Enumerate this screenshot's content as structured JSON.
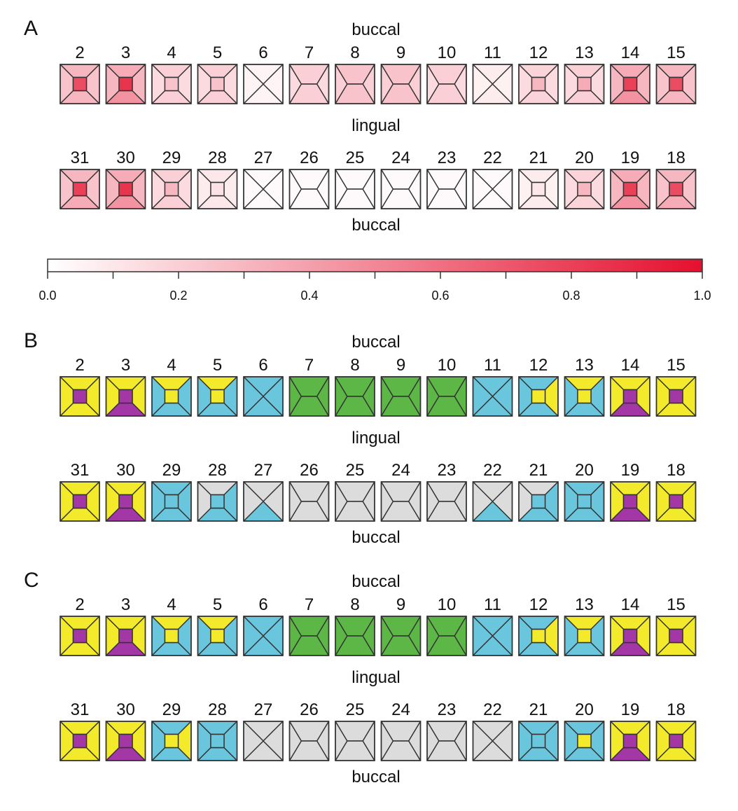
{
  "colors": {
    "stroke": "#333333",
    "text": "#111111",
    "yellow": "#f2ea2a",
    "purple": "#a437a6",
    "cyan": "#69c6dc",
    "green": "#5cb746",
    "gray": "#dcdcdc",
    "white": "#ffffff",
    "scale_low": "#ffffff",
    "scale_high": "#e5102e"
  },
  "side_labels": {
    "buccal": "buccal",
    "lingual": "lingual"
  },
  "colorbar": {
    "ticks": [
      "0.0",
      "0.2",
      "0.4",
      "0.6",
      "0.8",
      "1.0"
    ],
    "min": 0,
    "max": 1
  },
  "panels": [
    {
      "label": "A",
      "mode": "heat",
      "upper": {
        "teeth": [
          "2",
          "3",
          "4",
          "5",
          "6",
          "7",
          "8",
          "9",
          "10",
          "11",
          "12",
          "13",
          "14",
          "15"
        ],
        "types": [
          "p",
          "p",
          "p",
          "p",
          "x",
          "h",
          "h",
          "h",
          "h",
          "x",
          "p",
          "p",
          "p",
          "p"
        ],
        "values": [
          {
            "o": 0.75,
            "t": 0.3,
            "b": 0.3,
            "l": 0.25,
            "r": 0.25
          },
          {
            "o": 0.85,
            "t": 0.35,
            "b": 0.45,
            "l": 0.3,
            "r": 0.3
          },
          {
            "o": 0.25,
            "t": 0.2,
            "b": 0.2,
            "l": 0.15,
            "r": 0.15
          },
          {
            "o": 0.25,
            "t": 0.2,
            "b": 0.2,
            "l": 0.15,
            "r": 0.15
          },
          {
            "o": 0,
            "t": 0.05,
            "b": 0.05,
            "l": 0.05,
            "r": 0.05
          },
          {
            "o": 0,
            "t": 0.2,
            "b": 0.2,
            "l": 0.15,
            "r": 0.15
          },
          {
            "o": 0,
            "t": 0.25,
            "b": 0.25,
            "l": 0.2,
            "r": 0.2
          },
          {
            "o": 0,
            "t": 0.25,
            "b": 0.25,
            "l": 0.2,
            "r": 0.2
          },
          {
            "o": 0,
            "t": 0.2,
            "b": 0.2,
            "l": 0.15,
            "r": 0.15
          },
          {
            "o": 0,
            "t": 0.08,
            "b": 0.08,
            "l": 0.06,
            "r": 0.06
          },
          {
            "o": 0.3,
            "t": 0.18,
            "b": 0.18,
            "l": 0.15,
            "r": 0.15
          },
          {
            "o": 0.35,
            "t": 0.2,
            "b": 0.2,
            "l": 0.15,
            "r": 0.15
          },
          {
            "o": 0.8,
            "t": 0.35,
            "b": 0.45,
            "l": 0.3,
            "r": 0.3
          },
          {
            "o": 0.75,
            "t": 0.3,
            "b": 0.3,
            "l": 0.25,
            "r": 0.25
          }
        ]
      },
      "lower": {
        "teeth": [
          "31",
          "30",
          "29",
          "28",
          "27",
          "26",
          "25",
          "24",
          "23",
          "22",
          "21",
          "20",
          "19",
          "18"
        ],
        "types": [
          "p",
          "p",
          "p",
          "p",
          "x",
          "h",
          "h",
          "h",
          "h",
          "x",
          "p",
          "p",
          "p",
          "p"
        ],
        "values": [
          {
            "o": 0.8,
            "t": 0.3,
            "b": 0.35,
            "l": 0.25,
            "r": 0.25
          },
          {
            "o": 0.85,
            "t": 0.35,
            "b": 0.45,
            "l": 0.3,
            "r": 0.3
          },
          {
            "o": 0.3,
            "t": 0.2,
            "b": 0.2,
            "l": 0.15,
            "r": 0.15
          },
          {
            "o": 0.12,
            "t": 0.1,
            "b": 0.1,
            "l": 0.08,
            "r": 0.08
          },
          {
            "o": 0,
            "t": 0.02,
            "b": 0.02,
            "l": 0.02,
            "r": 0.02
          },
          {
            "o": 0,
            "t": 0.02,
            "b": 0.02,
            "l": 0.02,
            "r": 0.02
          },
          {
            "o": 0,
            "t": 0.02,
            "b": 0.02,
            "l": 0.02,
            "r": 0.02
          },
          {
            "o": 0,
            "t": 0.02,
            "b": 0.02,
            "l": 0.02,
            "r": 0.02
          },
          {
            "o": 0,
            "t": 0.02,
            "b": 0.02,
            "l": 0.02,
            "r": 0.02
          },
          {
            "o": 0,
            "t": 0.02,
            "b": 0.02,
            "l": 0.02,
            "r": 0.02
          },
          {
            "o": 0.1,
            "t": 0.08,
            "b": 0.08,
            "l": 0.06,
            "r": 0.06
          },
          {
            "o": 0.3,
            "t": 0.18,
            "b": 0.18,
            "l": 0.15,
            "r": 0.15
          },
          {
            "o": 0.8,
            "t": 0.35,
            "b": 0.45,
            "l": 0.3,
            "r": 0.3
          },
          {
            "o": 0.75,
            "t": 0.3,
            "b": 0.35,
            "l": 0.25,
            "r": 0.25
          }
        ]
      }
    },
    {
      "label": "B",
      "mode": "cat",
      "upper": {
        "teeth": [
          "2",
          "3",
          "4",
          "5",
          "6",
          "7",
          "8",
          "9",
          "10",
          "11",
          "12",
          "13",
          "14",
          "15"
        ],
        "types": [
          "p",
          "p",
          "p",
          "p",
          "x",
          "h",
          "h",
          "h",
          "h",
          "x",
          "p",
          "p",
          "p",
          "p"
        ],
        "colors": [
          {
            "o": "purple",
            "t": "yellow",
            "b": "yellow",
            "l": "yellow",
            "r": "yellow"
          },
          {
            "o": "purple",
            "t": "yellow",
            "b": "purple",
            "l": "yellow",
            "r": "yellow"
          },
          {
            "o": "yellow",
            "t": "yellow",
            "b": "cyan",
            "l": "cyan",
            "r": "cyan"
          },
          {
            "o": "yellow",
            "t": "yellow",
            "b": "cyan",
            "l": "cyan",
            "r": "cyan"
          },
          {
            "o": "cyan",
            "t": "cyan",
            "b": "cyan",
            "l": "cyan",
            "r": "cyan"
          },
          {
            "o": "green",
            "t": "green",
            "b": "green",
            "l": "green",
            "r": "green"
          },
          {
            "o": "green",
            "t": "green",
            "b": "green",
            "l": "green",
            "r": "green"
          },
          {
            "o": "green",
            "t": "green",
            "b": "green",
            "l": "green",
            "r": "green"
          },
          {
            "o": "green",
            "t": "green",
            "b": "green",
            "l": "green",
            "r": "green"
          },
          {
            "o": "cyan",
            "t": "cyan",
            "b": "cyan",
            "l": "cyan",
            "r": "cyan"
          },
          {
            "o": "yellow",
            "t": "cyan",
            "b": "cyan",
            "l": "cyan",
            "r": "yellow"
          },
          {
            "o": "yellow",
            "t": "yellow",
            "b": "cyan",
            "l": "cyan",
            "r": "cyan"
          },
          {
            "o": "purple",
            "t": "yellow",
            "b": "purple",
            "l": "yellow",
            "r": "yellow"
          },
          {
            "o": "purple",
            "t": "yellow",
            "b": "yellow",
            "l": "yellow",
            "r": "yellow"
          }
        ]
      },
      "lower": {
        "teeth": [
          "31",
          "30",
          "29",
          "28",
          "27",
          "26",
          "25",
          "24",
          "23",
          "22",
          "21",
          "20",
          "19",
          "18"
        ],
        "types": [
          "p",
          "p",
          "p",
          "p",
          "x",
          "h",
          "h",
          "h",
          "h",
          "x",
          "p",
          "p",
          "p",
          "p"
        ],
        "colors": [
          {
            "o": "purple",
            "t": "yellow",
            "b": "yellow",
            "l": "yellow",
            "r": "yellow"
          },
          {
            "o": "purple",
            "t": "yellow",
            "b": "purple",
            "l": "yellow",
            "r": "yellow"
          },
          {
            "o": "cyan",
            "t": "cyan",
            "b": "cyan",
            "l": "cyan",
            "r": "cyan"
          },
          {
            "o": "cyan",
            "t": "gray",
            "b": "cyan",
            "l": "gray",
            "r": "cyan"
          },
          {
            "o": "gray",
            "t": "gray",
            "b": "cyan",
            "l": "gray",
            "r": "gray"
          },
          {
            "o": "gray",
            "t": "gray",
            "b": "gray",
            "l": "gray",
            "r": "gray"
          },
          {
            "o": "gray",
            "t": "gray",
            "b": "gray",
            "l": "gray",
            "r": "gray"
          },
          {
            "o": "gray",
            "t": "gray",
            "b": "gray",
            "l": "gray",
            "r": "gray"
          },
          {
            "o": "gray",
            "t": "gray",
            "b": "gray",
            "l": "gray",
            "r": "gray"
          },
          {
            "o": "gray",
            "t": "gray",
            "b": "cyan",
            "l": "gray",
            "r": "gray"
          },
          {
            "o": "cyan",
            "t": "gray",
            "b": "cyan",
            "l": "gray",
            "r": "cyan"
          },
          {
            "o": "cyan",
            "t": "cyan",
            "b": "cyan",
            "l": "cyan",
            "r": "cyan"
          },
          {
            "o": "purple",
            "t": "yellow",
            "b": "purple",
            "l": "yellow",
            "r": "yellow"
          },
          {
            "o": "purple",
            "t": "yellow",
            "b": "yellow",
            "l": "yellow",
            "r": "yellow"
          }
        ]
      }
    },
    {
      "label": "C",
      "mode": "cat",
      "upper": {
        "teeth": [
          "2",
          "3",
          "4",
          "5",
          "6",
          "7",
          "8",
          "9",
          "10",
          "11",
          "12",
          "13",
          "14",
          "15"
        ],
        "types": [
          "p",
          "p",
          "p",
          "p",
          "x",
          "h",
          "h",
          "h",
          "h",
          "x",
          "p",
          "p",
          "p",
          "p"
        ],
        "colors": [
          {
            "o": "purple",
            "t": "yellow",
            "b": "yellow",
            "l": "yellow",
            "r": "yellow"
          },
          {
            "o": "purple",
            "t": "yellow",
            "b": "purple",
            "l": "yellow",
            "r": "yellow"
          },
          {
            "o": "yellow",
            "t": "yellow",
            "b": "cyan",
            "l": "cyan",
            "r": "cyan"
          },
          {
            "o": "yellow",
            "t": "yellow",
            "b": "cyan",
            "l": "cyan",
            "r": "cyan"
          },
          {
            "o": "cyan",
            "t": "cyan",
            "b": "cyan",
            "l": "cyan",
            "r": "cyan"
          },
          {
            "o": "green",
            "t": "green",
            "b": "green",
            "l": "green",
            "r": "green"
          },
          {
            "o": "green",
            "t": "green",
            "b": "green",
            "l": "green",
            "r": "green"
          },
          {
            "o": "green",
            "t": "green",
            "b": "green",
            "l": "green",
            "r": "green"
          },
          {
            "o": "green",
            "t": "green",
            "b": "green",
            "l": "green",
            "r": "green"
          },
          {
            "o": "cyan",
            "t": "cyan",
            "b": "cyan",
            "l": "cyan",
            "r": "cyan"
          },
          {
            "o": "yellow",
            "t": "cyan",
            "b": "cyan",
            "l": "cyan",
            "r": "yellow"
          },
          {
            "o": "yellow",
            "t": "yellow",
            "b": "cyan",
            "l": "cyan",
            "r": "cyan"
          },
          {
            "o": "purple",
            "t": "yellow",
            "b": "purple",
            "l": "yellow",
            "r": "yellow"
          },
          {
            "o": "purple",
            "t": "yellow",
            "b": "yellow",
            "l": "yellow",
            "r": "yellow"
          }
        ]
      },
      "lower": {
        "teeth": [
          "31",
          "30",
          "29",
          "28",
          "27",
          "26",
          "25",
          "24",
          "23",
          "22",
          "21",
          "20",
          "19",
          "18"
        ],
        "types": [
          "p",
          "p",
          "p",
          "p",
          "x",
          "h",
          "h",
          "h",
          "h",
          "x",
          "p",
          "p",
          "p",
          "p"
        ],
        "colors": [
          {
            "o": "purple",
            "t": "yellow",
            "b": "yellow",
            "l": "yellow",
            "r": "yellow"
          },
          {
            "o": "purple",
            "t": "yellow",
            "b": "purple",
            "l": "yellow",
            "r": "yellow"
          },
          {
            "o": "yellow",
            "t": "cyan",
            "b": "cyan",
            "l": "cyan",
            "r": "yellow"
          },
          {
            "o": "cyan",
            "t": "cyan",
            "b": "cyan",
            "l": "cyan",
            "r": "cyan"
          },
          {
            "o": "gray",
            "t": "gray",
            "b": "gray",
            "l": "gray",
            "r": "gray"
          },
          {
            "o": "gray",
            "t": "gray",
            "b": "gray",
            "l": "gray",
            "r": "gray"
          },
          {
            "o": "gray",
            "t": "gray",
            "b": "gray",
            "l": "gray",
            "r": "gray"
          },
          {
            "o": "gray",
            "t": "gray",
            "b": "gray",
            "l": "gray",
            "r": "gray"
          },
          {
            "o": "gray",
            "t": "gray",
            "b": "gray",
            "l": "gray",
            "r": "gray"
          },
          {
            "o": "gray",
            "t": "gray",
            "b": "gray",
            "l": "gray",
            "r": "gray"
          },
          {
            "o": "cyan",
            "t": "cyan",
            "b": "cyan",
            "l": "cyan",
            "r": "cyan"
          },
          {
            "o": "yellow",
            "t": "cyan",
            "b": "cyan",
            "l": "cyan",
            "r": "cyan"
          },
          {
            "o": "purple",
            "t": "yellow",
            "b": "purple",
            "l": "yellow",
            "r": "yellow"
          },
          {
            "o": "purple",
            "t": "yellow",
            "b": "yellow",
            "l": "yellow",
            "r": "yellow"
          }
        ]
      }
    }
  ]
}
